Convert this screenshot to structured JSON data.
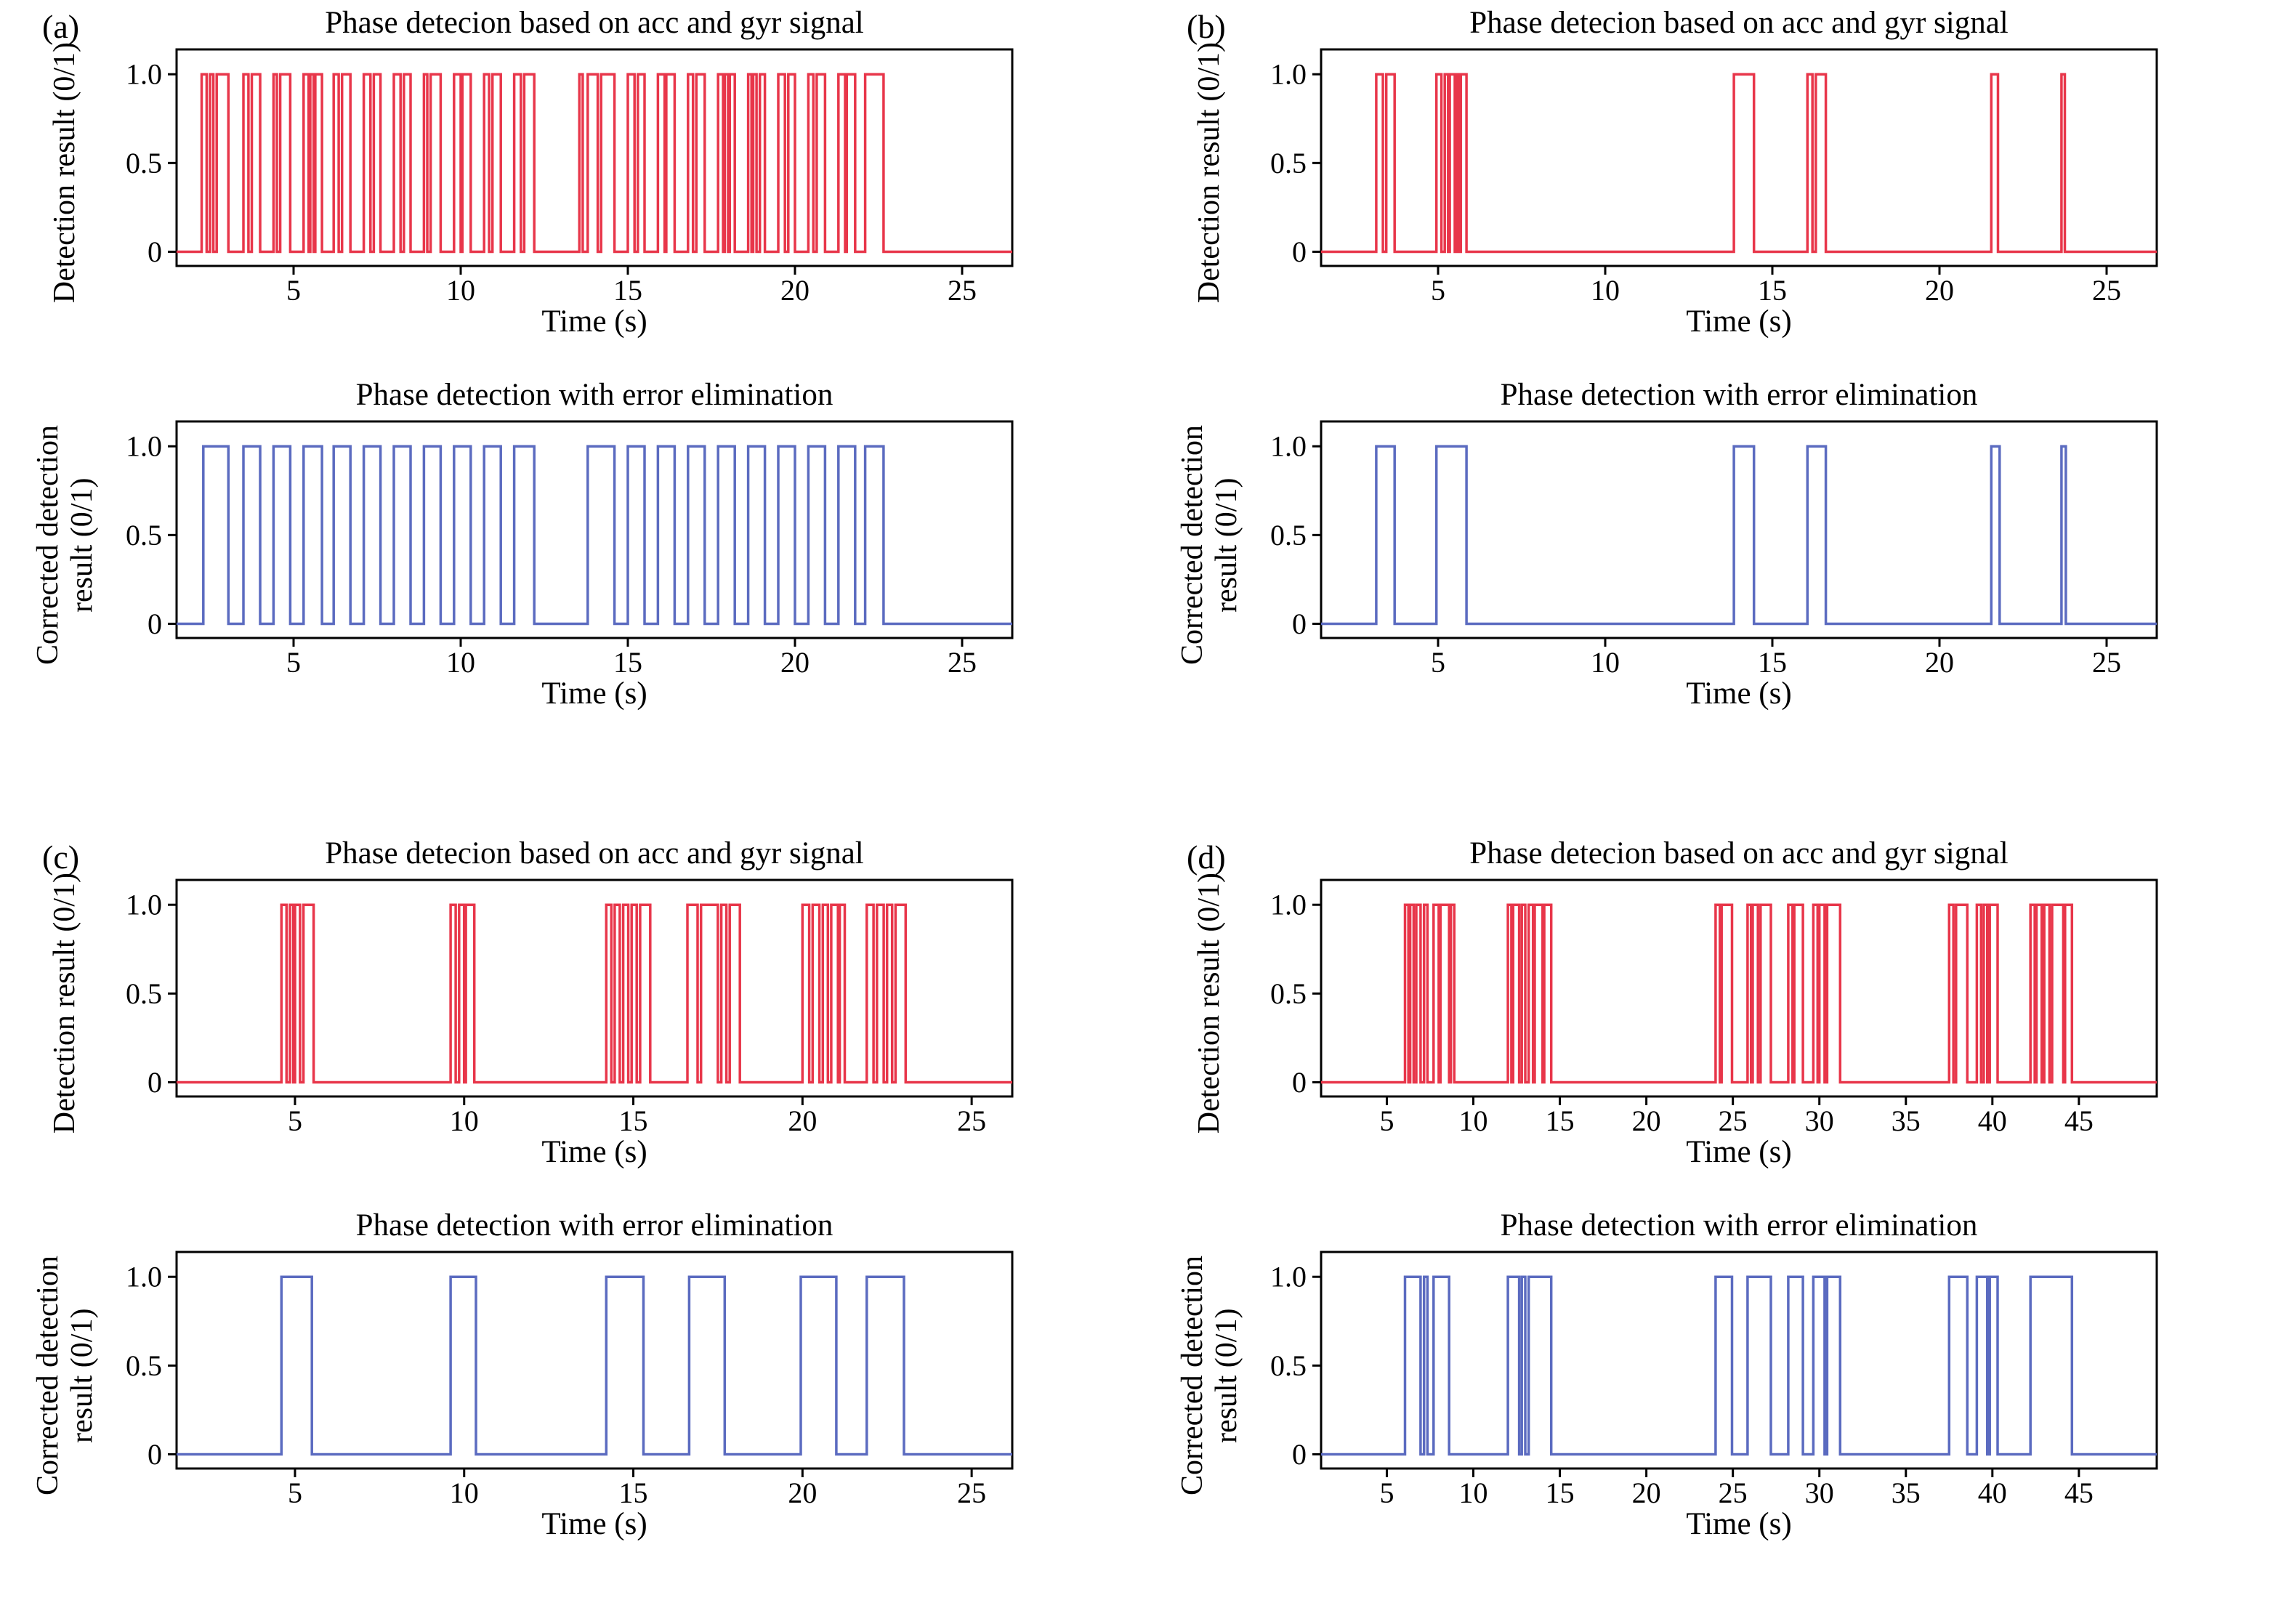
{
  "panels": [
    "(a)",
    "(b)",
    "(c)",
    "(d)"
  ],
  "colors": {
    "raw_signal": "#e8364a",
    "corrected_signal": "#5b6bc0",
    "axis": "#000000"
  },
  "chart_data": [
    {
      "type": "line",
      "panel": "(a)",
      "position": "top",
      "title": "Phase detecion based on acc and gyr signal",
      "ylabel": "Detection result (0/1)",
      "xlabel": "Time (s)",
      "color": "#e8364a",
      "xlim": [
        1.5,
        26.5
      ],
      "ylim": [
        -0.08,
        1.14
      ],
      "xticks": [
        5,
        10,
        15,
        20,
        25
      ],
      "yticks": [
        0,
        0.5,
        1
      ],
      "ytick_labels": [
        "0",
        "0.5",
        "1.0"
      ],
      "signal_levels": [
        0,
        1
      ],
      "intervals": [
        [
          2.25,
          2.4
        ],
        [
          2.5,
          2.6
        ],
        [
          2.7,
          3.05
        ],
        [
          3.5,
          3.65
        ],
        [
          3.75,
          4.0
        ],
        [
          4.4,
          4.5
        ],
        [
          4.6,
          4.9
        ],
        [
          5.3,
          5.45
        ],
        [
          5.5,
          5.6
        ],
        [
          5.65,
          5.85
        ],
        [
          6.2,
          6.35
        ],
        [
          6.45,
          6.7
        ],
        [
          7.1,
          7.3
        ],
        [
          7.4,
          7.6
        ],
        [
          8.0,
          8.2
        ],
        [
          8.3,
          8.5
        ],
        [
          8.9,
          9.0
        ],
        [
          9.1,
          9.4
        ],
        [
          9.8,
          10.0
        ],
        [
          10.05,
          10.3
        ],
        [
          10.7,
          10.85
        ],
        [
          10.95,
          11.2
        ],
        [
          11.6,
          11.8
        ],
        [
          11.9,
          12.2
        ],
        [
          13.55,
          13.65
        ],
        [
          13.8,
          14.1
        ],
        [
          14.2,
          14.6
        ],
        [
          15.0,
          15.2
        ],
        [
          15.3,
          15.5
        ],
        [
          15.9,
          16.1
        ],
        [
          16.15,
          16.4
        ],
        [
          16.8,
          16.95
        ],
        [
          17.05,
          17.3
        ],
        [
          17.7,
          17.85
        ],
        [
          17.9,
          18.0
        ],
        [
          18.05,
          18.2
        ],
        [
          18.6,
          18.7
        ],
        [
          18.75,
          18.85
        ],
        [
          18.95,
          19.1
        ],
        [
          19.5,
          19.7
        ],
        [
          19.8,
          20.0
        ],
        [
          20.4,
          20.55
        ],
        [
          20.65,
          20.9
        ],
        [
          21.3,
          21.5
        ],
        [
          21.55,
          21.8
        ],
        [
          22.1,
          22.65
        ]
      ]
    },
    {
      "type": "line",
      "panel": "(a)",
      "position": "bottom",
      "title": "Phase detection with error elimination",
      "ylabel": "Corrected detection\nresult (0/1)",
      "xlabel": "Time (s)",
      "color": "#5b6bc0",
      "xlim": [
        1.5,
        26.5
      ],
      "ylim": [
        -0.08,
        1.14
      ],
      "xticks": [
        5,
        10,
        15,
        20,
        25
      ],
      "yticks": [
        0,
        0.5,
        1
      ],
      "ytick_labels": [
        "0",
        "0.5",
        "1.0"
      ],
      "signal_levels": [
        0,
        1
      ],
      "intervals": [
        [
          2.3,
          3.05
        ],
        [
          3.5,
          4.0
        ],
        [
          4.4,
          4.9
        ],
        [
          5.3,
          5.85
        ],
        [
          6.2,
          6.7
        ],
        [
          7.1,
          7.6
        ],
        [
          8.0,
          8.5
        ],
        [
          8.9,
          9.4
        ],
        [
          9.8,
          10.3
        ],
        [
          10.7,
          11.2
        ],
        [
          11.6,
          12.2
        ],
        [
          13.8,
          14.6
        ],
        [
          15.0,
          15.5
        ],
        [
          15.9,
          16.4
        ],
        [
          16.8,
          17.3
        ],
        [
          17.7,
          18.2
        ],
        [
          18.6,
          19.1
        ],
        [
          19.5,
          20.0
        ],
        [
          20.4,
          20.9
        ],
        [
          21.3,
          21.8
        ],
        [
          22.1,
          22.65
        ]
      ]
    },
    {
      "type": "line",
      "panel": "(b)",
      "position": "top",
      "title": "Phase detecion based on acc and gyr signal",
      "ylabel": "Detection result (0/1)",
      "xlabel": "Time (s)",
      "color": "#e8364a",
      "xlim": [
        1.5,
        26.5
      ],
      "ylim": [
        -0.08,
        1.14
      ],
      "xticks": [
        5,
        10,
        15,
        20,
        25
      ],
      "yticks": [
        0,
        0.5,
        1
      ],
      "ytick_labels": [
        "0",
        "0.5",
        "1.0"
      ],
      "signal_levels": [
        0,
        1
      ],
      "intervals": [
        [
          3.15,
          3.35
        ],
        [
          3.45,
          3.7
        ],
        [
          4.95,
          5.1
        ],
        [
          5.2,
          5.3
        ],
        [
          5.35,
          5.5
        ],
        [
          5.55,
          5.62
        ],
        [
          5.68,
          5.85
        ],
        [
          13.85,
          14.45
        ],
        [
          16.05,
          16.2
        ],
        [
          16.3,
          16.6
        ],
        [
          21.55,
          21.75
        ],
        [
          23.65,
          23.75
        ]
      ]
    },
    {
      "type": "line",
      "panel": "(b)",
      "position": "bottom",
      "title": "Phase detection with error elimination",
      "ylabel": "Corrected detection\nresult (0/1)",
      "xlabel": "Time (s)",
      "color": "#5b6bc0",
      "xlim": [
        1.5,
        26.5
      ],
      "ylim": [
        -0.08,
        1.14
      ],
      "xticks": [
        5,
        10,
        15,
        20,
        25
      ],
      "yticks": [
        0,
        0.5,
        1
      ],
      "ytick_labels": [
        "0",
        "0.5",
        "1.0"
      ],
      "signal_levels": [
        0,
        1
      ],
      "intervals": [
        [
          3.15,
          3.7
        ],
        [
          4.95,
          5.85
        ],
        [
          13.85,
          14.45
        ],
        [
          16.05,
          16.6
        ],
        [
          21.55,
          21.8
        ],
        [
          23.65,
          23.78
        ]
      ]
    },
    {
      "type": "line",
      "panel": "(c)",
      "position": "top",
      "title": "Phase detecion based on acc and gyr signal",
      "ylabel": "Detection result (0/1)",
      "xlabel": "Time (s)",
      "color": "#e8364a",
      "xlim": [
        1.5,
        26.2
      ],
      "ylim": [
        -0.08,
        1.14
      ],
      "xticks": [
        5,
        10,
        15,
        20,
        25
      ],
      "yticks": [
        0,
        0.5,
        1
      ],
      "ytick_labels": [
        "0",
        "0.5",
        "1.0"
      ],
      "signal_levels": [
        0,
        1
      ],
      "intervals": [
        [
          4.6,
          4.75
        ],
        [
          4.85,
          4.95
        ],
        [
          5.0,
          5.15
        ],
        [
          5.25,
          5.55
        ],
        [
          9.6,
          9.75
        ],
        [
          9.85,
          10.0
        ],
        [
          10.05,
          10.3
        ],
        [
          14.2,
          14.35
        ],
        [
          14.45,
          14.6
        ],
        [
          14.7,
          14.85
        ],
        [
          14.95,
          15.1
        ],
        [
          15.2,
          15.5
        ],
        [
          16.6,
          16.9
        ],
        [
          17.0,
          17.5
        ],
        [
          17.6,
          17.75
        ],
        [
          17.85,
          18.15
        ],
        [
          20.0,
          20.2
        ],
        [
          20.3,
          20.5
        ],
        [
          20.6,
          20.75
        ],
        [
          20.85,
          21.05
        ],
        [
          21.1,
          21.25
        ],
        [
          21.9,
          22.1
        ],
        [
          22.2,
          22.4
        ],
        [
          22.5,
          22.65
        ],
        [
          22.75,
          23.05
        ]
      ]
    },
    {
      "type": "line",
      "panel": "(c)",
      "position": "bottom",
      "title": "Phase detection with error elimination",
      "ylabel": "Corrected detection\nresult (0/1)",
      "xlabel": "Time (s)",
      "color": "#5b6bc0",
      "xlim": [
        1.5,
        26.2
      ],
      "ylim": [
        -0.08,
        1.14
      ],
      "xticks": [
        5,
        10,
        15,
        20,
        25
      ],
      "yticks": [
        0,
        0.5,
        1
      ],
      "ytick_labels": [
        "0",
        "0.5",
        "1.0"
      ],
      "signal_levels": [
        0,
        1
      ],
      "intervals": [
        [
          4.6,
          5.5
        ],
        [
          9.6,
          10.35
        ],
        [
          14.2,
          15.3
        ],
        [
          16.65,
          17.7
        ],
        [
          19.95,
          21.0
        ],
        [
          21.9,
          23.0
        ]
      ]
    },
    {
      "type": "line",
      "panel": "(d)",
      "position": "top",
      "title": "Phase detecion based on acc and gyr signal",
      "ylabel": "Detection result (0/1)",
      "xlabel": "Time (s)",
      "color": "#e8364a",
      "xlim": [
        1.2,
        49.5
      ],
      "ylim": [
        -0.08,
        1.14
      ],
      "xticks": [
        5,
        10,
        15,
        20,
        25,
        30,
        35,
        40,
        45
      ],
      "yticks": [
        0,
        0.5,
        1
      ],
      "ytick_labels": [
        "0",
        "0.5",
        "1.0"
      ],
      "signal_levels": [
        0,
        1
      ],
      "intervals": [
        [
          6.05,
          6.25
        ],
        [
          6.35,
          6.55
        ],
        [
          6.7,
          6.95
        ],
        [
          7.15,
          7.35
        ],
        [
          7.7,
          8.0
        ],
        [
          8.1,
          8.6
        ],
        [
          8.7,
          8.9
        ],
        [
          12.0,
          12.2
        ],
        [
          12.3,
          12.65
        ],
        [
          12.8,
          13.0
        ],
        [
          13.2,
          13.45
        ],
        [
          13.55,
          14.0
        ],
        [
          14.1,
          14.5
        ],
        [
          24.0,
          24.25
        ],
        [
          24.35,
          24.95
        ],
        [
          25.85,
          26.05
        ],
        [
          26.15,
          26.45
        ],
        [
          26.6,
          27.2
        ],
        [
          28.2,
          28.45
        ],
        [
          28.55,
          29.05
        ],
        [
          29.65,
          29.9
        ],
        [
          30.0,
          30.3
        ],
        [
          30.45,
          31.2
        ],
        [
          37.5,
          37.75
        ],
        [
          37.9,
          38.55
        ],
        [
          39.1,
          39.35
        ],
        [
          39.5,
          39.7
        ],
        [
          39.85,
          40.3
        ],
        [
          42.2,
          42.45
        ],
        [
          42.55,
          42.85
        ],
        [
          43.0,
          43.3
        ],
        [
          43.45,
          44.1
        ],
        [
          44.2,
          44.6
        ]
      ]
    },
    {
      "type": "line",
      "panel": "(d)",
      "position": "bottom",
      "title": "Phase detection with error elimination",
      "ylabel": "Corrected detection\nresult (0/1)",
      "xlabel": "Time (s)",
      "color": "#5b6bc0",
      "xlim": [
        1.2,
        49.5
      ],
      "ylim": [
        -0.08,
        1.14
      ],
      "xticks": [
        5,
        10,
        15,
        20,
        25,
        30,
        35,
        40,
        45
      ],
      "yticks": [
        0,
        0.5,
        1
      ],
      "ytick_labels": [
        "0",
        "0.5",
        "1.0"
      ],
      "signal_levels": [
        0,
        1
      ],
      "intervals": [
        [
          6.05,
          6.95
        ],
        [
          7.15,
          7.35
        ],
        [
          7.7,
          8.6
        ],
        [
          12.0,
          12.65
        ],
        [
          12.8,
          13.0
        ],
        [
          13.2,
          14.5
        ],
        [
          24.0,
          24.95
        ],
        [
          25.85,
          27.2
        ],
        [
          28.2,
          29.05
        ],
        [
          29.65,
          30.3
        ],
        [
          30.45,
          31.2
        ],
        [
          37.5,
          38.55
        ],
        [
          39.1,
          39.7
        ],
        [
          39.85,
          40.3
        ],
        [
          42.2,
          44.6
        ]
      ]
    }
  ]
}
